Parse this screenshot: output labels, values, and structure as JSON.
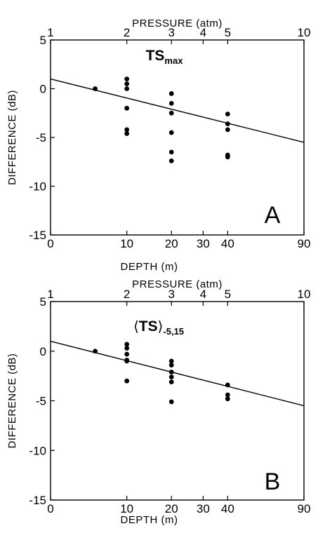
{
  "chart_data": [
    {
      "type": "scatter",
      "panel_label": "A",
      "annotation": {
        "main": "TS",
        "sub": "max",
        "prefix": "",
        "suffix": ""
      },
      "xlabel": "DEPTH (m)",
      "x2label": "PRESSURE (atm)",
      "ylabel": "DIFFERENCE (dB)",
      "pressure_scale": "log",
      "pressure_range": [
        1,
        10
      ],
      "xticks": [
        0,
        10,
        20,
        30,
        40,
        90
      ],
      "x2ticks": [
        1,
        2,
        3,
        4,
        5,
        10
      ],
      "ylim": [
        -15,
        5
      ],
      "yticks": [
        5,
        0,
        -5,
        -10,
        -15
      ],
      "series": [
        {
          "points": [
            {
              "x": 5,
              "y": 0.0
            },
            {
              "x": 10,
              "y": 1.0
            },
            {
              "x": 10,
              "y": 0.5
            },
            {
              "x": 10,
              "y": 0.0
            },
            {
              "x": 10,
              "y": -2.0
            },
            {
              "x": 10,
              "y": -4.2
            },
            {
              "x": 10,
              "y": -4.6
            },
            {
              "x": 20,
              "y": -0.5
            },
            {
              "x": 20,
              "y": -1.5
            },
            {
              "x": 20,
              "y": -2.5
            },
            {
              "x": 20,
              "y": -4.5
            },
            {
              "x": 20,
              "y": -6.5
            },
            {
              "x": 20,
              "y": -7.4
            },
            {
              "x": 40,
              "y": -2.6
            },
            {
              "x": 40,
              "y": -3.6
            },
            {
              "x": 40,
              "y": -4.2
            },
            {
              "x": 40,
              "y": -6.8
            },
            {
              "x": 40,
              "y": -7.0
            }
          ]
        }
      ],
      "fit_line": {
        "points": [
          {
            "x": 0,
            "y": 1.0
          },
          {
            "x": 90,
            "y": -5.5
          }
        ]
      }
    },
    {
      "type": "scatter",
      "panel_label": "B",
      "annotation": {
        "main": "TS",
        "sub": "-5,15",
        "prefix": "⟨",
        "suffix": "⟩"
      },
      "xlabel": "DEPTH (m)",
      "x2label": "PRESSURE (atm)",
      "ylabel": "DIFFERENCE (dB)",
      "pressure_scale": "log",
      "pressure_range": [
        1,
        10
      ],
      "xticks": [
        0,
        10,
        20,
        30,
        40,
        90
      ],
      "x2ticks": [
        1,
        2,
        3,
        4,
        5,
        10
      ],
      "ylim": [
        -15,
        5
      ],
      "yticks": [
        5,
        0,
        -5,
        -10,
        -15
      ],
      "series": [
        {
          "points": [
            {
              "x": 5,
              "y": 0.0
            },
            {
              "x": 10,
              "y": 0.7
            },
            {
              "x": 10,
              "y": 0.3
            },
            {
              "x": 10,
              "y": -0.3
            },
            {
              "x": 10,
              "y": -0.9
            },
            {
              "x": 10,
              "y": -1.0
            },
            {
              "x": 10,
              "y": -3.0
            },
            {
              "x": 20,
              "y": -1.0
            },
            {
              "x": 20,
              "y": -1.4
            },
            {
              "x": 20,
              "y": -2.1
            },
            {
              "x": 20,
              "y": -2.6
            },
            {
              "x": 20,
              "y": -3.1
            },
            {
              "x": 20,
              "y": -5.1
            },
            {
              "x": 40,
              "y": -3.4
            },
            {
              "x": 40,
              "y": -4.4
            },
            {
              "x": 40,
              "y": -4.8
            }
          ]
        }
      ],
      "fit_line": {
        "points": [
          {
            "x": 0,
            "y": 1.0
          },
          {
            "x": 90,
            "y": -5.5
          }
        ]
      }
    }
  ]
}
